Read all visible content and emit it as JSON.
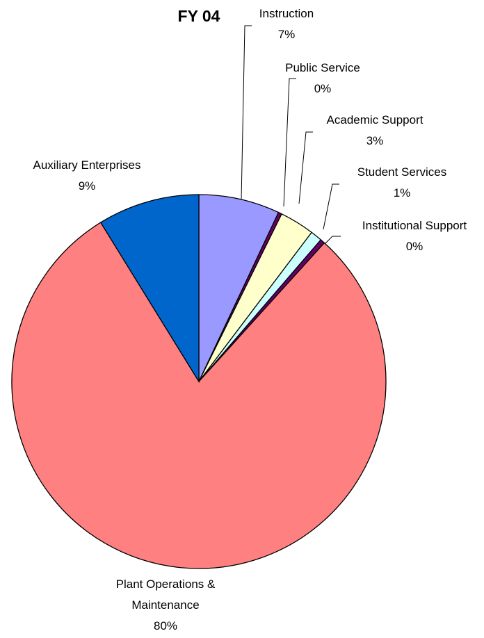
{
  "chart_data": {
    "type": "pie",
    "title": "FY 04",
    "categories": [
      "Instruction",
      "Public Service",
      "Academic Support",
      "Student Services",
      "Institutional Support",
      "Plant Operations & Maintenance",
      "Auxiliary Enterprises"
    ],
    "values": [
      7,
      0.3,
      3,
      1,
      0.4,
      79.5,
      8.8
    ],
    "value_labels": [
      "7%",
      "0%",
      "3%",
      "1%",
      "0%",
      "80%",
      "9%"
    ],
    "colors": [
      "#9999ff",
      "#660066",
      "#ffffcc",
      "#ccffff",
      "#660066",
      "#ff8080",
      "#0066cc"
    ]
  }
}
